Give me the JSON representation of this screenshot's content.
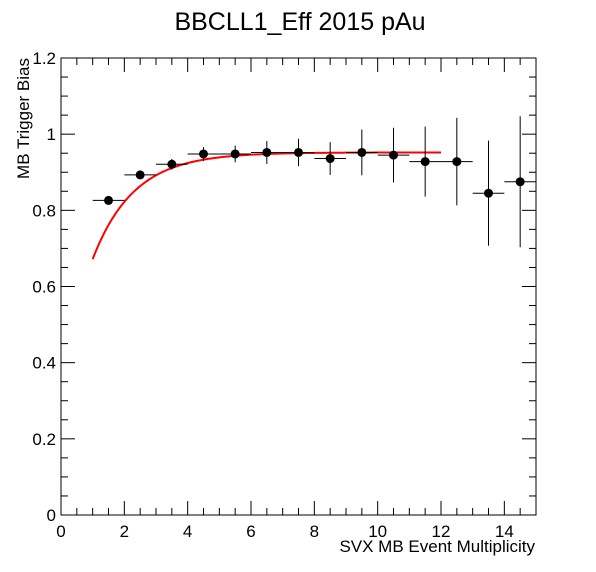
{
  "chart_data": {
    "type": "scatter",
    "title": "BBCLL1_Eff 2015 pAu",
    "xlabel": "SVX MB Event Multiplicity",
    "ylabel": "MB Trigger Bias",
    "xlim": [
      0,
      15
    ],
    "ylim": [
      0,
      1.2
    ],
    "x_ticks": [
      "0",
      "2",
      "4",
      "6",
      "8",
      "10",
      "12",
      "14"
    ],
    "y_ticks": [
      "0",
      "0.2",
      "0.4",
      "0.6",
      "0.8",
      "1",
      "1.2"
    ],
    "grid": false,
    "legend": "none",
    "series": [
      {
        "marker_color": "#000000",
        "points": [
          {
            "x": 1.5,
            "y": 0.826,
            "xerr": 0.5,
            "yerr": 0.006
          },
          {
            "x": 2.5,
            "y": 0.893,
            "xerr": 0.5,
            "yerr": 0.01
          },
          {
            "x": 3.5,
            "y": 0.921,
            "xerr": 0.5,
            "yerr": 0.014
          },
          {
            "x": 4.5,
            "y": 0.948,
            "xerr": 0.5,
            "yerr": 0.018
          },
          {
            "x": 5.5,
            "y": 0.948,
            "xerr": 0.5,
            "yerr": 0.022
          },
          {
            "x": 6.5,
            "y": 0.952,
            "xerr": 0.5,
            "yerr": 0.03
          },
          {
            "x": 7.5,
            "y": 0.952,
            "xerr": 0.5,
            "yerr": 0.036
          },
          {
            "x": 8.5,
            "y": 0.936,
            "xerr": 0.5,
            "yerr": 0.043
          },
          {
            "x": 9.5,
            "y": 0.952,
            "xerr": 0.5,
            "yerr": 0.06
          },
          {
            "x": 10.5,
            "y": 0.945,
            "xerr": 0.5,
            "yerr": 0.072
          },
          {
            "x": 11.5,
            "y": 0.928,
            "xerr": 0.5,
            "yerr": 0.092
          },
          {
            "x": 12.5,
            "y": 0.928,
            "xerr": 0.5,
            "yerr": 0.115
          },
          {
            "x": 13.5,
            "y": 0.845,
            "xerr": 0.5,
            "yerr": 0.138
          },
          {
            "x": 14.5,
            "y": 0.875,
            "xerr": 0.5,
            "yerr": 0.172
          }
        ]
      }
    ],
    "fit": {
      "color": "#ff0000",
      "x_range": [
        1.0,
        12.0
      ],
      "plateau": 0.952,
      "amplitude": 0.28,
      "decay": 1.3
    }
  }
}
